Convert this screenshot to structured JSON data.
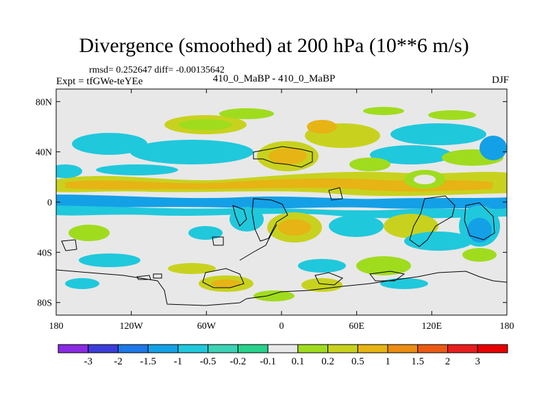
{
  "header": {
    "title": "Divergence (smoothed) at 200 hPa (10**6 m/s)",
    "stats": "rmsd= 0.252647 diff= -0.00135642",
    "experiment": "Expt = tfGWe-teYEe",
    "case": "410_0_MaBP - 410_0_MaBP",
    "season": "DJF"
  },
  "chart_data": {
    "type": "heatmap",
    "title": "Divergence (smoothed) at 200 hPa (10**6 m/s)",
    "xlabel": "",
    "ylabel": "",
    "xlim": [
      -180,
      180
    ],
    "ylim": [
      -90,
      90
    ],
    "x_ticks": [
      {
        "value": -180,
        "label": "180"
      },
      {
        "value": -120,
        "label": "120W"
      },
      {
        "value": -60,
        "label": "60W"
      },
      {
        "value": 0,
        "label": "0"
      },
      {
        "value": 60,
        "label": "60E"
      },
      {
        "value": 120,
        "label": "120E"
      },
      {
        "value": 180,
        "label": "180"
      }
    ],
    "y_ticks": [
      {
        "value": 80,
        "label": "80N"
      },
      {
        "value": 40,
        "label": "40N"
      },
      {
        "value": 0,
        "label": "0"
      },
      {
        "value": -40,
        "label": "40S"
      },
      {
        "value": -80,
        "label": "80S"
      }
    ],
    "colorbar": {
      "labels": [
        "-3",
        "-2",
        "-1.5",
        "-1",
        "-0.5",
        "-0.2",
        "-0.1",
        "0.1",
        "0.2",
        "0.5",
        "1",
        "1.5",
        "2",
        "3"
      ],
      "colors": [
        "#8a2be2",
        "#3c3cd8",
        "#1e78e6",
        "#14a0e6",
        "#20c8dc",
        "#3cd2b4",
        "#28d28c",
        "#e8e8e8",
        "#a0dc1e",
        "#c8d21e",
        "#e6b414",
        "#eb8c14",
        "#eb5a14",
        "#e61e1e",
        "#e60000"
      ]
    },
    "background_color": "#e8e8e8",
    "features": [
      {
        "name": "equatorial-divergence-band",
        "level": "0.5",
        "lon": [
          -180,
          180
        ],
        "lat": [
          4,
          14
        ]
      },
      {
        "name": "equatorial-convergence-band",
        "level": "-0.5",
        "lon": [
          -180,
          180
        ],
        "lat": [
          -6,
          4
        ]
      },
      {
        "name": "africa-divergence-max",
        "level": "1",
        "lon": [
          0,
          40
        ],
        "lat": [
          -25,
          -5
        ]
      },
      {
        "name": "asia-subtropical-max",
        "level": "1",
        "lon": [
          -30,
          30
        ],
        "lat": [
          28,
          45
        ]
      }
    ]
  }
}
